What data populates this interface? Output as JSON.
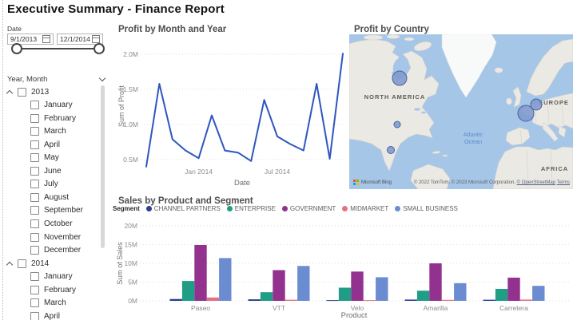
{
  "report": {
    "title": "Executive Summary - Finance Report"
  },
  "date_slicer": {
    "label": "Date",
    "start_date": "9/1/2013",
    "end_date": "12/1/2014"
  },
  "year_month_filter": {
    "header": "Year, Month",
    "groups": [
      {
        "year": "2013",
        "expanded": true,
        "months": [
          "January",
          "February",
          "March",
          "April",
          "May",
          "June",
          "July",
          "August",
          "September",
          "October",
          "November",
          "December"
        ]
      },
      {
        "year": "2014",
        "expanded": true,
        "months": [
          "January",
          "February",
          "March",
          "April"
        ]
      }
    ]
  },
  "map": {
    "title": "Profit by Country",
    "region_labels": {
      "north_america": "NORTH AMERICA",
      "europe": "EUROPE",
      "africa": "AFRICA"
    },
    "ocean_label_line1": "Atlantic",
    "ocean_label_line2": "Ocean",
    "bubble_color": "#7b97cf",
    "bubble_stroke": "#44639f",
    "bubbles": [
      {
        "location": "Canada",
        "x": 63,
        "y": 55,
        "r": 9
      },
      {
        "location": "United States",
        "x": 60,
        "y": 113,
        "r": 4
      },
      {
        "location": "Mexico",
        "x": 52,
        "y": 145,
        "r": 4.5
      },
      {
        "location": "France",
        "x": 221,
        "y": 99,
        "r": 10
      },
      {
        "location": "Germany",
        "x": 234,
        "y": 88,
        "r": 7
      }
    ],
    "logo": "Microsoft Bing",
    "attribution": {
      "text": "© 2022 TomTom, © 2023 Microsoft Corporation, ",
      "link_osm": "© OpenStreetMap",
      "link_terms": "Terms"
    }
  },
  "chart_data": [
    {
      "id": "profit_by_month_and_year",
      "type": "line",
      "title": "Profit by Month and Year",
      "xlabel": "Date",
      "ylabel": "Sum of Profit",
      "x": [
        "Sep 2013",
        "Oct 2013",
        "Nov 2013",
        "Dec 2013",
        "Jan 2014",
        "Feb 2014",
        "Mar 2014",
        "Apr 2014",
        "May 2014",
        "Jun 2014",
        "Jul 2014",
        "Aug 2014",
        "Sep 2014",
        "Oct 2014",
        "Nov 2014",
        "Dec 2014"
      ],
      "values_millions": [
        0.4,
        1.58,
        0.79,
        0.63,
        0.52,
        1.13,
        0.63,
        0.6,
        0.48,
        1.35,
        0.83,
        0.72,
        0.63,
        1.58,
        0.51,
        2.01
      ],
      "x_tick_labels": [
        "Jan 2014",
        "Jul 2014"
      ],
      "x_tick_indices": [
        4,
        10
      ],
      "y_ticks": [
        "0.5M",
        "1.0M",
        "1.5M",
        "2.0M"
      ],
      "y_tick_values": [
        0.5,
        1.0,
        1.5,
        2.0
      ],
      "ylim": [
        0.3,
        2.1
      ],
      "grid": "dotted",
      "line_color": "#2e56c0"
    },
    {
      "id": "sales_by_product_and_segment",
      "type": "bar",
      "title": "Sales by Product and Segment",
      "legend_title": "Segment",
      "legend_position": "top",
      "xlabel": "Product",
      "ylabel": "Sum of Sales",
      "categories": [
        "Paseo",
        "VTT",
        "Velo",
        "Amarilla",
        "Carretera"
      ],
      "series": [
        {
          "name": "CHANNEL PARTNERS",
          "color": "#2b3e95",
          "values": [
            0.5,
            0.4,
            0.2,
            0.35,
            0.3
          ]
        },
        {
          "name": "ENTERPRISE",
          "color": "#1f9d85",
          "values": [
            5.3,
            2.3,
            3.5,
            2.7,
            3.2
          ]
        },
        {
          "name": "GOVERNMENT",
          "color": "#93328e",
          "values": [
            14.9,
            8.2,
            7.8,
            10.0,
            6.2
          ]
        },
        {
          "name": "MIDMARKET",
          "color": "#e47181",
          "values": [
            0.9,
            0.3,
            0.2,
            0.25,
            0.35
          ]
        },
        {
          "name": "SMALL BUSINESS",
          "color": "#6b8cd1",
          "values": [
            11.4,
            9.3,
            6.3,
            4.7,
            4.0
          ]
        }
      ],
      "y_ticks": [
        "0M",
        "5M",
        "10M",
        "15M",
        "20M"
      ],
      "y_tick_values": [
        0,
        5,
        10,
        15,
        20
      ],
      "ylim": [
        0,
        20
      ],
      "grid": "dotted"
    }
  ]
}
